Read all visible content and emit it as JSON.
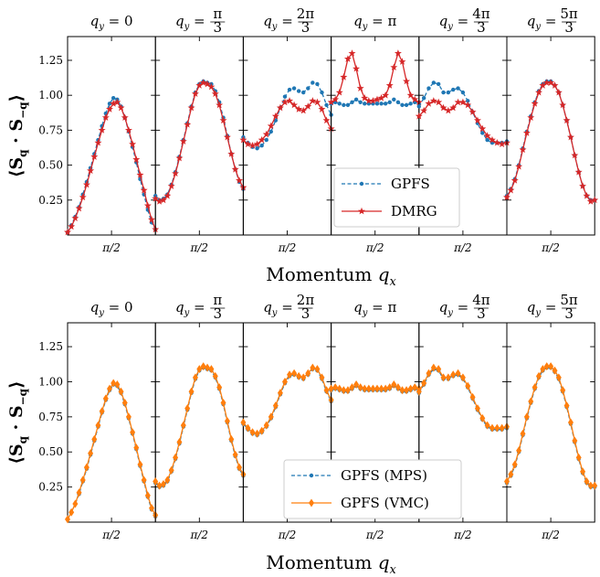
{
  "chart_data": [
    {
      "type": "line",
      "xlabel": "Momentum q_x",
      "ylabel": "⟨S_q · S_−q⟩",
      "ylim": [
        0.0,
        1.42
      ],
      "yticks": [
        "0.25",
        "0.50",
        "0.75",
        "1.00",
        "1.25"
      ],
      "xtick_label": "π/2",
      "panels": [
        {
          "title": "q_y = 0",
          "title_frac": ""
        },
        {
          "title": "q_y = ",
          "title_frac": "π/3"
        },
        {
          "title": "q_y = ",
          "title_frac": "2π/3"
        },
        {
          "title": "q_y = π",
          "title_frac": ""
        },
        {
          "title": "q_y = ",
          "title_frac": "4π/3"
        },
        {
          "title": "q_y = ",
          "title_frac": "5π/3"
        }
      ],
      "legend": {
        "position": "lower-center",
        "entries": [
          "GPFS",
          "DMRG"
        ]
      },
      "series": [
        {
          "name": "GPFS",
          "color": "#1f77b4",
          "style": "dashed",
          "marker": "dot",
          "panels": [
            [
              0.02,
              0.07,
              0.13,
              0.2,
              0.29,
              0.38,
              0.48,
              0.58,
              0.68,
              0.78,
              0.87,
              0.94,
              0.98,
              0.97,
              0.92,
              0.84,
              0.74,
              0.63,
              0.52,
              0.4,
              0.29,
              0.18,
              0.09,
              0.04
            ],
            [
              0.28,
              0.25,
              0.26,
              0.29,
              0.36,
              0.45,
              0.56,
              0.68,
              0.8,
              0.92,
              1.02,
              1.08,
              1.1,
              1.09,
              1.08,
              1.03,
              0.95,
              0.84,
              0.71,
              0.58,
              0.47,
              0.38,
              0.33
            ],
            [
              0.7,
              0.66,
              0.63,
              0.62,
              0.64,
              0.68,
              0.74,
              0.82,
              0.91,
              0.99,
              1.04,
              1.05,
              1.03,
              1.02,
              1.05,
              1.09,
              1.08,
              1.02,
              0.93,
              0.86
            ],
            [
              0.94,
              0.95,
              0.94,
              0.93,
              0.93,
              0.95,
              0.97,
              0.95,
              0.94,
              0.94,
              0.94,
              0.94,
              0.94,
              0.94,
              0.95,
              0.97,
              0.95,
              0.93,
              0.93,
              0.94,
              0.95,
              0.94
            ],
            [
              0.92,
              0.98,
              1.05,
              1.09,
              1.08,
              1.02,
              1.02,
              1.04,
              1.05,
              1.02,
              0.96,
              0.88,
              0.8,
              0.73,
              0.68,
              0.66,
              0.66,
              0.66,
              0.67
            ],
            [
              0.28,
              0.33,
              0.4,
              0.5,
              0.62,
              0.74,
              0.85,
              0.95,
              1.03,
              1.08,
              1.1,
              1.1,
              1.07,
              1.02,
              0.93,
              0.82,
              0.7,
              0.57,
              0.45,
              0.35,
              0.28,
              0.25,
              0.25
            ]
          ]
        },
        {
          "name": "DMRG",
          "color": "#d62728",
          "style": "solid",
          "marker": "star",
          "panels": [
            [
              0.02,
              0.06,
              0.12,
              0.19,
              0.27,
              0.36,
              0.46,
              0.56,
              0.66,
              0.75,
              0.84,
              0.9,
              0.94,
              0.95,
              0.91,
              0.84,
              0.75,
              0.65,
              0.54,
              0.43,
              0.32,
              0.21,
              0.11,
              0.04
            ],
            [
              0.26,
              0.24,
              0.25,
              0.28,
              0.35,
              0.44,
              0.55,
              0.67,
              0.79,
              0.91,
              1.01,
              1.07,
              1.09,
              1.08,
              1.06,
              1.01,
              0.93,
              0.82,
              0.7,
              0.58,
              0.47,
              0.39,
              0.34
            ],
            [
              0.68,
              0.65,
              0.64,
              0.65,
              0.68,
              0.72,
              0.78,
              0.85,
              0.91,
              0.95,
              0.96,
              0.93,
              0.9,
              0.89,
              0.92,
              0.96,
              0.95,
              0.9,
              0.82,
              0.76
            ],
            [
              0.95,
              0.97,
              1.02,
              1.13,
              1.26,
              1.3,
              1.19,
              1.05,
              0.98,
              0.96,
              0.96,
              0.97,
              0.98,
              1.0,
              1.07,
              1.2,
              1.3,
              1.24,
              1.1,
              1.0,
              0.97,
              0.95
            ],
            [
              0.85,
              0.89,
              0.94,
              0.96,
              0.95,
              0.91,
              0.89,
              0.91,
              0.95,
              0.95,
              0.93,
              0.88,
              0.82,
              0.76,
              0.71,
              0.68,
              0.66,
              0.65,
              0.66
            ],
            [
              0.27,
              0.32,
              0.39,
              0.49,
              0.61,
              0.73,
              0.84,
              0.94,
              1.02,
              1.07,
              1.09,
              1.09,
              1.07,
              1.02,
              0.93,
              0.82,
              0.7,
              0.57,
              0.45,
              0.35,
              0.28,
              0.24,
              0.25
            ]
          ]
        }
      ]
    },
    {
      "type": "line",
      "xlabel": "Momentum q_x",
      "ylabel": "⟨S_q · S_−q⟩",
      "ylim": [
        0.0,
        1.42
      ],
      "yticks": [
        "0.25",
        "0.50",
        "0.75",
        "1.00",
        "1.25"
      ],
      "xtick_label": "π/2",
      "panels": [
        {
          "title": "q_y = 0",
          "title_frac": ""
        },
        {
          "title": "q_y = ",
          "title_frac": "π/3"
        },
        {
          "title": "q_y = ",
          "title_frac": "2π/3"
        },
        {
          "title": "q_y = π",
          "title_frac": ""
        },
        {
          "title": "q_y = ",
          "title_frac": "4π/3"
        },
        {
          "title": "q_y = ",
          "title_frac": "5π/3"
        }
      ],
      "legend": {
        "position": "lower-center",
        "entries": [
          "GPFS (MPS)",
          "GPFS (VMC)"
        ]
      },
      "series": [
        {
          "name": "GPFS (MPS)",
          "color": "#1f77b4",
          "style": "dashed",
          "marker": "dot",
          "panels": [
            [
              0.02,
              0.07,
              0.13,
              0.2,
              0.29,
              0.38,
              0.48,
              0.58,
              0.68,
              0.78,
              0.87,
              0.94,
              0.98,
              0.97,
              0.92,
              0.84,
              0.74,
              0.63,
              0.52,
              0.4,
              0.29,
              0.18,
              0.09,
              0.04
            ],
            [
              0.28,
              0.25,
              0.26,
              0.29,
              0.36,
              0.45,
              0.56,
              0.68,
              0.8,
              0.92,
              1.02,
              1.08,
              1.1,
              1.09,
              1.08,
              1.03,
              0.95,
              0.84,
              0.71,
              0.58,
              0.47,
              0.38,
              0.33
            ],
            [
              0.7,
              0.66,
              0.63,
              0.62,
              0.64,
              0.68,
              0.74,
              0.82,
              0.91,
              0.99,
              1.04,
              1.05,
              1.03,
              1.02,
              1.05,
              1.09,
              1.08,
              1.02,
              0.93,
              0.86
            ],
            [
              0.94,
              0.95,
              0.94,
              0.93,
              0.93,
              0.95,
              0.97,
              0.95,
              0.94,
              0.94,
              0.94,
              0.94,
              0.94,
              0.94,
              0.95,
              0.97,
              0.95,
              0.93,
              0.93,
              0.94,
              0.95,
              0.94
            ],
            [
              0.92,
              0.98,
              1.05,
              1.09,
              1.08,
              1.02,
              1.02,
              1.04,
              1.05,
              1.02,
              0.96,
              0.88,
              0.8,
              0.73,
              0.68,
              0.66,
              0.66,
              0.66,
              0.67
            ],
            [
              0.28,
              0.33,
              0.4,
              0.5,
              0.62,
              0.74,
              0.85,
              0.95,
              1.03,
              1.08,
              1.1,
              1.1,
              1.07,
              1.02,
              0.93,
              0.82,
              0.7,
              0.57,
              0.45,
              0.35,
              0.28,
              0.25,
              0.25
            ]
          ]
        },
        {
          "name": "GPFS (VMC)",
          "color": "#ff7f0e",
          "style": "solid",
          "marker": "diamond",
          "panels": [
            [
              0.02,
              0.07,
              0.13,
              0.21,
              0.3,
              0.39,
              0.49,
              0.59,
              0.69,
              0.79,
              0.88,
              0.95,
              0.99,
              0.98,
              0.93,
              0.85,
              0.75,
              0.64,
              0.53,
              0.41,
              0.3,
              0.19,
              0.1,
              0.05
            ],
            [
              0.29,
              0.26,
              0.27,
              0.3,
              0.37,
              0.46,
              0.57,
              0.69,
              0.81,
              0.93,
              1.03,
              1.09,
              1.11,
              1.1,
              1.09,
              1.04,
              0.96,
              0.85,
              0.72,
              0.59,
              0.48,
              0.39,
              0.34
            ],
            [
              0.71,
              0.67,
              0.64,
              0.63,
              0.65,
              0.69,
              0.75,
              0.83,
              0.92,
              1.0,
              1.05,
              1.06,
              1.04,
              1.03,
              1.06,
              1.1,
              1.09,
              1.03,
              0.94,
              0.87
            ],
            [
              0.95,
              0.96,
              0.95,
              0.94,
              0.94,
              0.96,
              0.98,
              0.96,
              0.95,
              0.95,
              0.95,
              0.95,
              0.95,
              0.95,
              0.96,
              0.98,
              0.96,
              0.94,
              0.94,
              0.95,
              0.96,
              0.95
            ],
            [
              0.93,
              0.99,
              1.06,
              1.1,
              1.09,
              1.03,
              1.03,
              1.05,
              1.06,
              1.03,
              0.97,
              0.89,
              0.81,
              0.74,
              0.69,
              0.67,
              0.67,
              0.67,
              0.68
            ],
            [
              0.29,
              0.34,
              0.41,
              0.51,
              0.63,
              0.75,
              0.86,
              0.96,
              1.04,
              1.09,
              1.11,
              1.11,
              1.08,
              1.03,
              0.94,
              0.83,
              0.71,
              0.58,
              0.46,
              0.36,
              0.29,
              0.26,
              0.26
            ]
          ]
        }
      ]
    }
  ]
}
